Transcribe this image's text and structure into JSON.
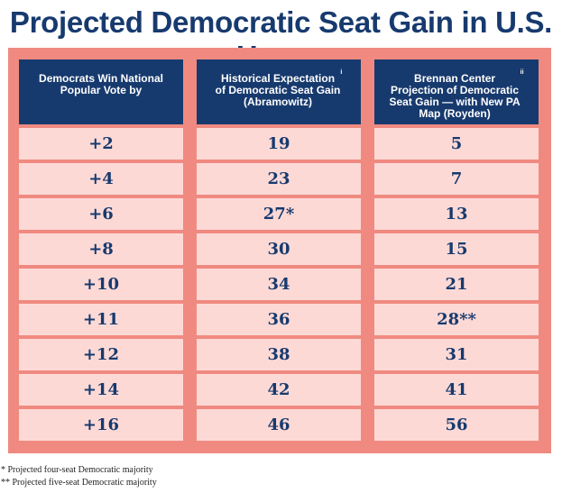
{
  "title": "Projected Democratic Seat Gain in U.S. House",
  "colors": {
    "title": "#173a6e",
    "header_bg": "#173a6e",
    "panel_bg": "#f08a80",
    "cell_bg": "#fdd9d6",
    "cell_text": "#173a6e"
  },
  "chart_data": {
    "type": "table",
    "title": "Projected Democratic Seat Gain in U.S. House",
    "columns": [
      {
        "label": "Democrats Win National\nPopular Vote by",
        "sup": ""
      },
      {
        "label": "Historical Expectation\nof Democratic Seat Gain\n(Abramowitz)",
        "sup": "i"
      },
      {
        "label": "Brennan Center\nProjection of Democratic\nSeat Gain — with New PA\nMap (Royden)",
        "sup": "ii"
      }
    ],
    "rows": [
      [
        "+2",
        "19",
        "5"
      ],
      [
        "+4",
        "23",
        "7"
      ],
      [
        "+6",
        "27*",
        "13"
      ],
      [
        "+8",
        "30",
        "15"
      ],
      [
        "+10",
        "34",
        "21"
      ],
      [
        "+11",
        "36",
        "28**"
      ],
      [
        "+12",
        "38",
        "31"
      ],
      [
        "+14",
        "42",
        "41"
      ],
      [
        "+16",
        "46",
        "56"
      ]
    ]
  },
  "footnotes": [
    "* Projected four-seat Democratic majority",
    "** Projected five-seat Democratic majority"
  ]
}
